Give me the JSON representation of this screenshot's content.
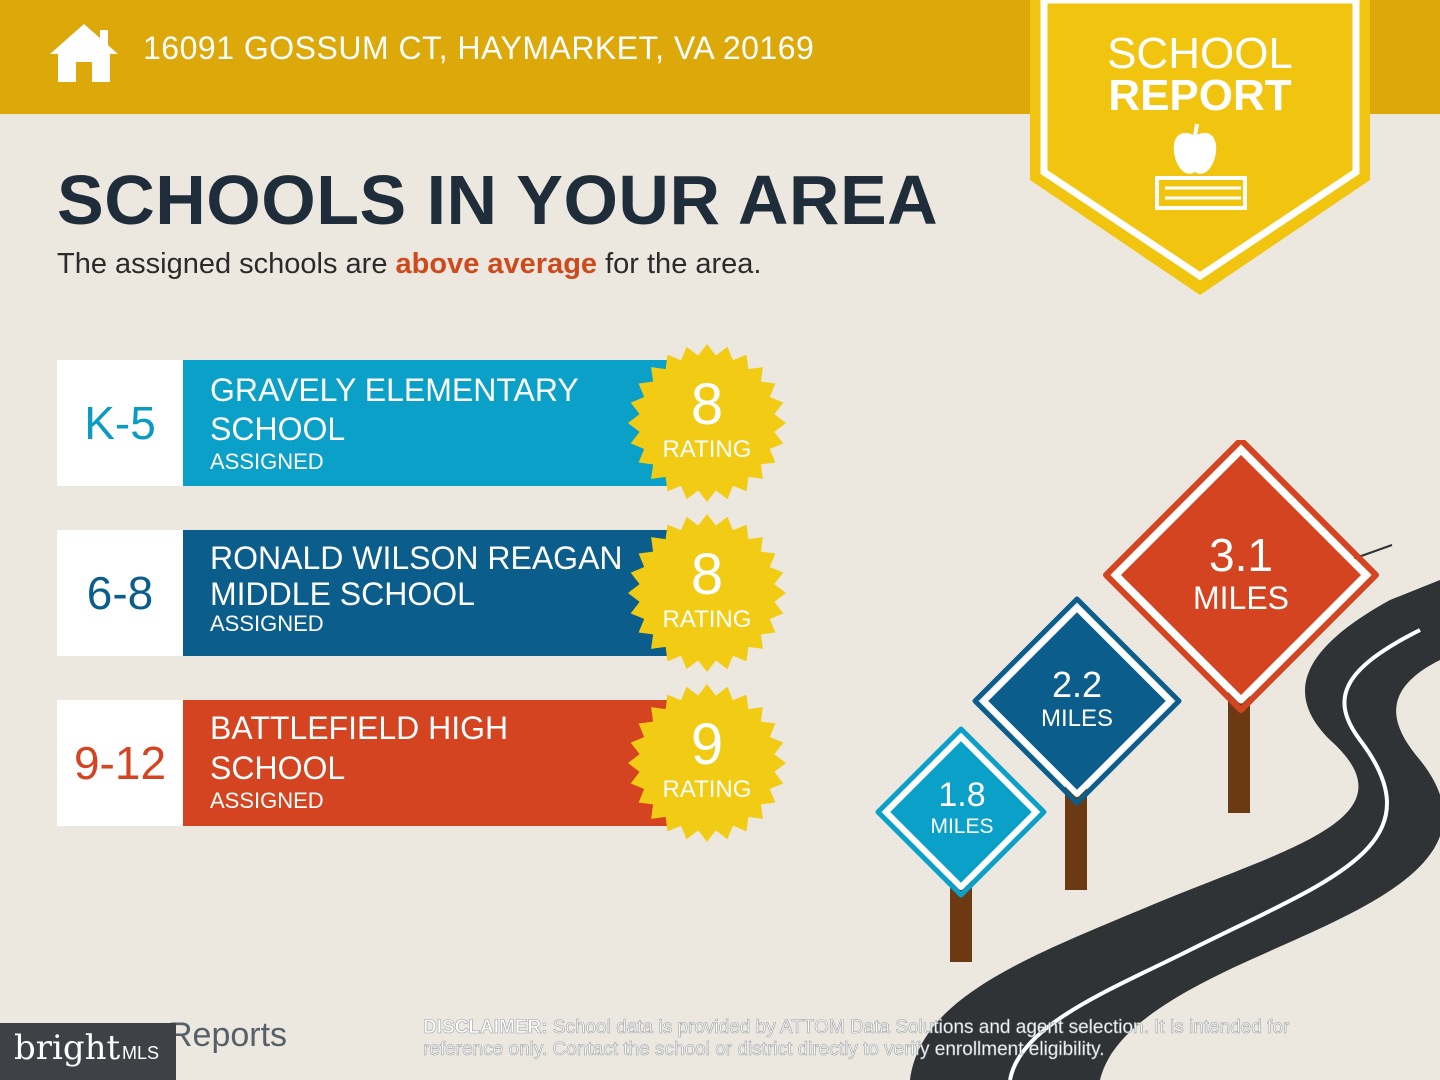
{
  "header": {
    "address": "16091 GOSSUM CT, HAYMARKET, VA 20169"
  },
  "badge": {
    "line1": "SCHOOL",
    "line2": "REPORT"
  },
  "headline": "SCHOOLS IN YOUR AREA",
  "subtitle": {
    "before": "The assigned schools are ",
    "highlight": "above average",
    "after": " for the area."
  },
  "schools": [
    {
      "grade": "K-5",
      "name_line1": "GRAVELY ELEMENTARY",
      "name_line2": "SCHOOL",
      "status": "ASSIGNED",
      "rating": "8",
      "rating_label": "RATING"
    },
    {
      "grade": "6-8",
      "name_line1": "RONALD WILSON REAGAN",
      "name_line2": "MIDDLE SCHOOL",
      "status": "ASSIGNED",
      "rating": "8",
      "rating_label": "RATING"
    },
    {
      "grade": "9-12",
      "name_line1": "BATTLEFIELD HIGH",
      "name_line2": "SCHOOL",
      "status": "ASSIGNED",
      "rating": "9",
      "rating_label": "RATING"
    }
  ],
  "signs": [
    {
      "distance": "1.8",
      "unit": "MILES"
    },
    {
      "distance": "2.2",
      "unit": "MILES"
    },
    {
      "distance": "3.1",
      "unit": "MILES"
    }
  ],
  "footer": {
    "logo_text": "Reports",
    "bright_text": "bright",
    "mls_text": "MLS",
    "disclaimer_label": "DISCLAIMER:",
    "disclaimer_text": " School data is provided by ATTOM Data Solutions and agent selection. It is intended for reference only. Contact the school or district directly to verify enrollment eligibility."
  },
  "colors": {
    "header_gold": "#dca80a",
    "badge_yellow": "#f1c40f",
    "elementary_blue": "#0aa0c8",
    "middle_blue": "#0b5d8c",
    "high_red": "#d44420",
    "seal_yellow": "#f2cc14",
    "headline": "#1f2c3a",
    "highlight": "#cc4a1c"
  },
  "icons": [
    "house-icon",
    "apple-icon",
    "book-icon",
    "rating-seal-icon",
    "road-icon",
    "distance-sign-icon"
  ]
}
